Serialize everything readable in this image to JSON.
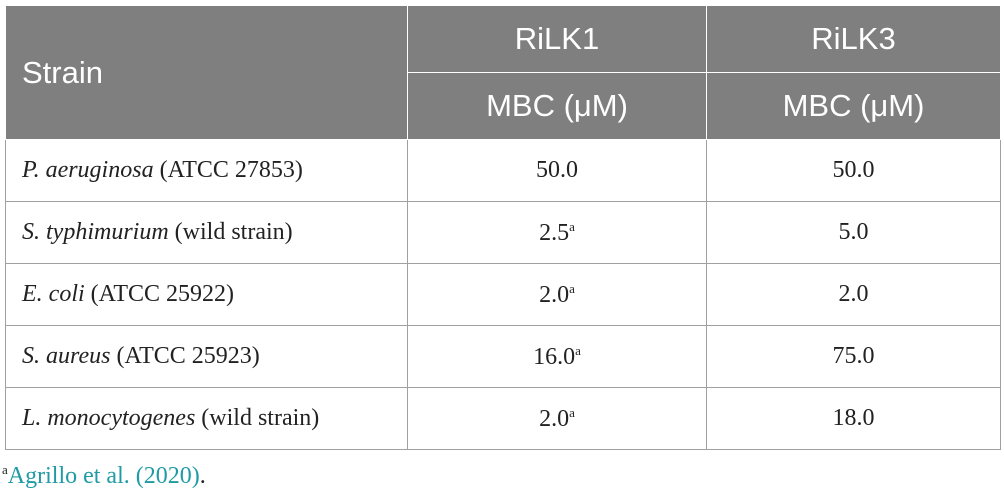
{
  "table": {
    "header": {
      "strain": "Strain",
      "groups": [
        "RiLK1",
        "RiLK3"
      ],
      "units": [
        "MBC (μM)",
        "MBC (μM)"
      ]
    },
    "rows": [
      {
        "species": "P. aeruginosa",
        "strain": "(ATCC 27853)",
        "cells": [
          {
            "text": "50.0"
          },
          {
            "text": "50.0"
          }
        ]
      },
      {
        "species": "S. typhimurium",
        "strain": "(wild strain)",
        "cells": [
          {
            "text": "2.5",
            "note": "a"
          },
          {
            "text": "5.0"
          }
        ]
      },
      {
        "species": "E. coli",
        "strain": "(ATCC 25922)",
        "cells": [
          {
            "text": "2.0",
            "note": "a"
          },
          {
            "text": "2.0"
          }
        ]
      },
      {
        "species": "S. aureus",
        "strain": "(ATCC 25923)",
        "cells": [
          {
            "text": "16.0",
            "note": "a"
          },
          {
            "text": "75.0"
          }
        ]
      },
      {
        "species": "L. monocytogenes",
        "strain": "(wild strain)",
        "cells": [
          {
            "text": "2.0",
            "note": "a"
          },
          {
            "text": "18.0"
          }
        ]
      }
    ]
  },
  "footnote": {
    "mark": "a",
    "citation": "Agrillo et al. (2020)",
    "end": "."
  }
}
